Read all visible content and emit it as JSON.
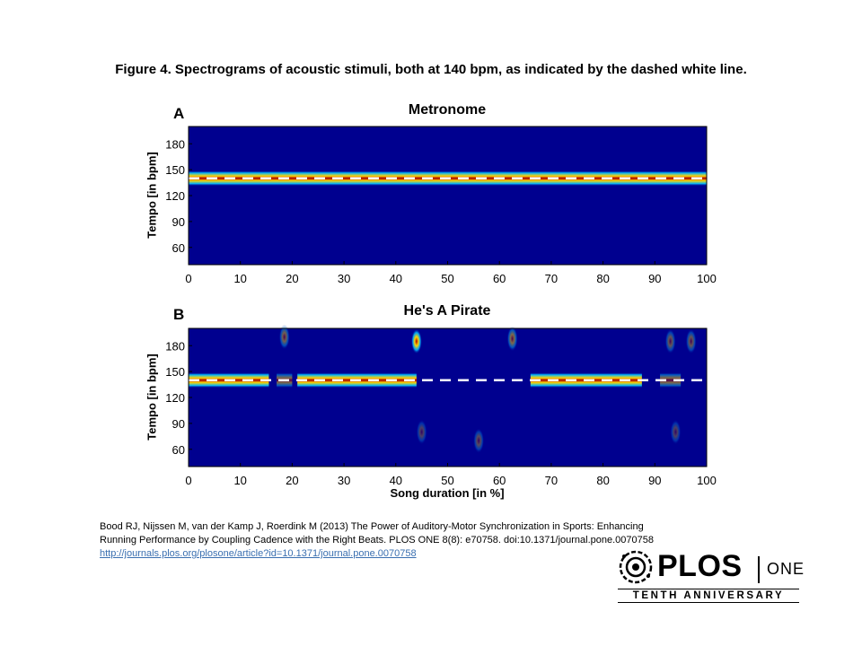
{
  "figure_title": "Figure 4. Spectrograms of acoustic stimuli, both at 140 bpm, as indicated by the dashed white line.",
  "citation": {
    "line1": "Bood RJ, Nijssen M, van der Kamp J, Roerdink M (2013) The Power of Auditory-Motor Synchronization in Sports: Enhancing",
    "line2": "Running Performance by Coupling Cadence with the Right Beats. PLOS ONE 8(8): e70758. doi:10.1371/journal.pone.0070758",
    "link": "http://journals.plos.org/plosone/article?id=10.1371/journal.pone.0070758"
  },
  "logo": {
    "word": "PLOS",
    "one": "ONE",
    "sub": "TENTH ANNIVERSARY"
  },
  "colors": {
    "background": "#00008f",
    "band_core": "#a80000",
    "band_mid": "#ffd400",
    "band_edge": "#00b4ff",
    "reference_line": "#ffffff"
  },
  "chart_data": [
    {
      "type": "heatmap",
      "panel": "A",
      "title": "Metronome",
      "xlabel": "",
      "ylabel": "Tempo [in bpm]",
      "xlim": [
        0,
        100
      ],
      "ylim": [
        40,
        200
      ],
      "xticks": [
        0,
        10,
        20,
        30,
        40,
        50,
        60,
        70,
        80,
        90,
        100
      ],
      "yticks": [
        60,
        90,
        120,
        150,
        180
      ],
      "reference_line_bpm": 140,
      "energy_bands": [
        {
          "x": [
            0,
            100
          ],
          "tempo": 140,
          "intensity": 1.0
        }
      ],
      "hotspots": []
    },
    {
      "type": "heatmap",
      "panel": "B",
      "title": "He's A Pirate",
      "xlabel": "Song duration [in %]",
      "ylabel": "Tempo [in bpm]",
      "xlim": [
        0,
        100
      ],
      "ylim": [
        40,
        200
      ],
      "xticks": [
        0,
        10,
        20,
        30,
        40,
        50,
        60,
        70,
        80,
        90,
        100
      ],
      "yticks": [
        60,
        90,
        120,
        150,
        180
      ],
      "reference_line_bpm": 140,
      "energy_bands": [
        {
          "x": [
            0,
            15.5
          ],
          "tempo": 140,
          "intensity": 1.0
        },
        {
          "x": [
            17,
            20
          ],
          "tempo": 140,
          "intensity": 0.5
        },
        {
          "x": [
            21,
            44
          ],
          "tempo": 140,
          "intensity": 1.0
        },
        {
          "x": [
            66,
            87.5
          ],
          "tempo": 140,
          "intensity": 1.0
        },
        {
          "x": [
            91,
            95
          ],
          "tempo": 140,
          "intensity": 0.5
        }
      ],
      "hotspots": [
        {
          "x": 44,
          "tempo": 185,
          "intensity": 1.0
        },
        {
          "x": 18.5,
          "tempo": 190,
          "intensity": 0.45
        },
        {
          "x": 62.5,
          "tempo": 188,
          "intensity": 0.5
        },
        {
          "x": 93,
          "tempo": 185,
          "intensity": 0.4
        },
        {
          "x": 97,
          "tempo": 185,
          "intensity": 0.4
        },
        {
          "x": 56,
          "tempo": 70,
          "intensity": 0.35
        },
        {
          "x": 45,
          "tempo": 80,
          "intensity": 0.3
        },
        {
          "x": 94,
          "tempo": 80,
          "intensity": 0.3
        }
      ]
    }
  ]
}
